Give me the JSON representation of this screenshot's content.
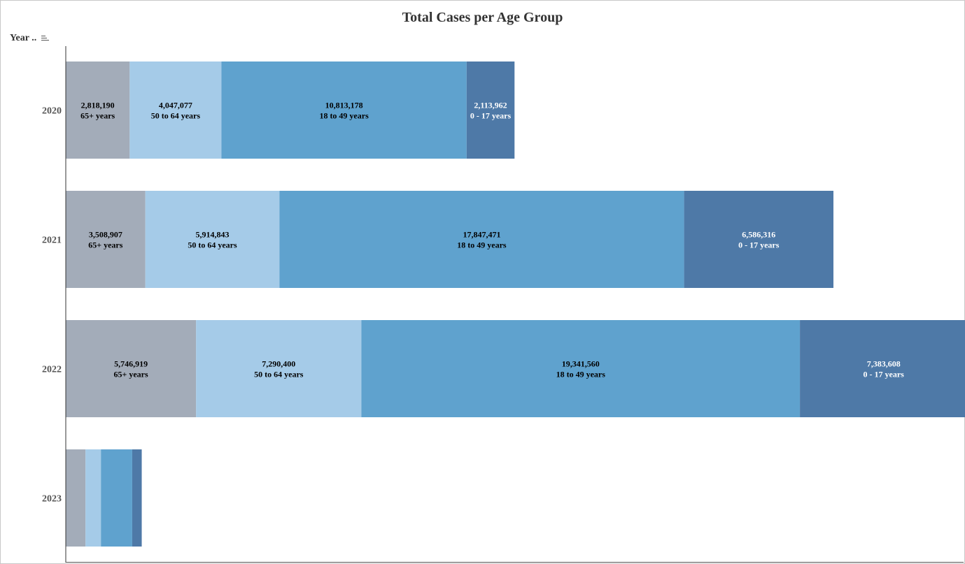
{
  "chart_data": {
    "type": "bar",
    "orientation": "horizontal",
    "stacked": true,
    "title": "Total Cases per Age Group",
    "ylabel": "Year ..",
    "categories": [
      "2020",
      "2021",
      "2022",
      "2023"
    ],
    "series": [
      {
        "name": "65+ years",
        "color": "#a3acb9",
        "label_color": "#000000",
        "values": [
          2818190,
          3508907,
          5746919,
          870000
        ]
      },
      {
        "name": "50 to 64 years",
        "color": "#a5cbe8",
        "label_color": "#000000",
        "values": [
          4047077,
          5914843,
          7290400,
          680000
        ]
      },
      {
        "name": "18 to 49 years",
        "color": "#5fa2ce",
        "label_color": "#000000",
        "values": [
          10813178,
          17847471,
          19341560,
          1380000
        ]
      },
      {
        "name": "0 - 17 years",
        "color": "#4e79a7",
        "label_color": "#ffffff",
        "values": [
          2113962,
          6586316,
          7383608,
          420000
        ]
      }
    ],
    "value_labels": [
      [
        "2,818,190",
        "4,047,077",
        "10,813,178",
        "2,113,962"
      ],
      [
        "3,508,907",
        "5,914,843",
        "17,847,471",
        "6,586,316"
      ],
      [
        "5,746,919",
        "7,290,400",
        "19,341,560",
        "7,383,608"
      ],
      [
        "",
        "",
        "",
        ""
      ]
    ],
    "grid": false,
    "legend": "none"
  }
}
